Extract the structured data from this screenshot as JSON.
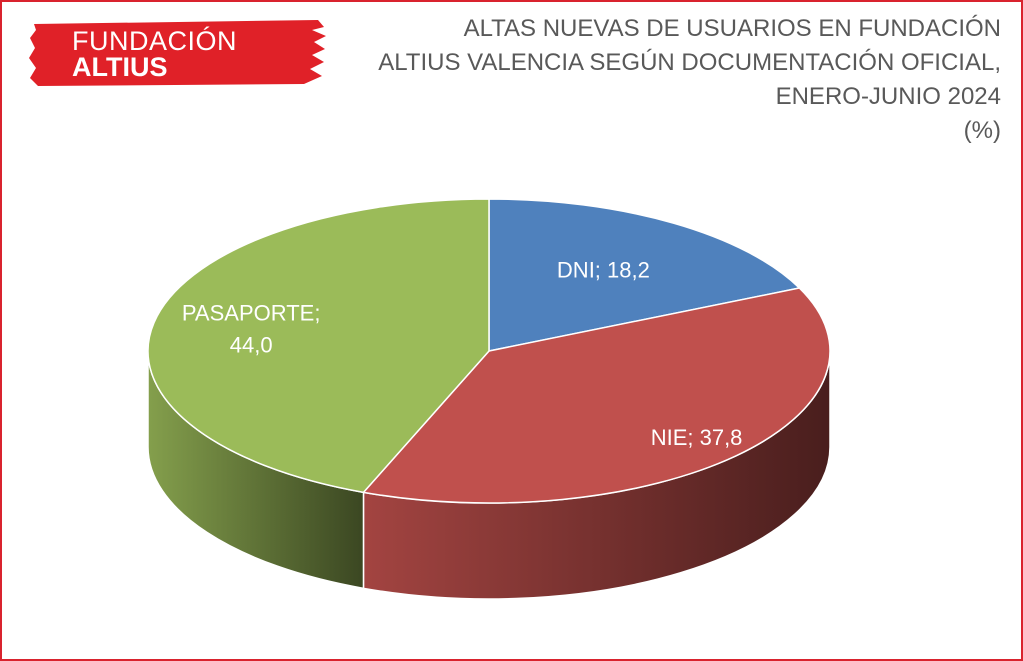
{
  "logo": {
    "line1": "FUNDACIÓN",
    "line2": "ALTIUS",
    "color": "#e02128"
  },
  "chart_data": {
    "type": "pie",
    "title_lines": [
      "ALTAS NUEVAS DE USUARIOS EN FUNDACIÓN",
      "ALTIUS VALENCIA SEGÚN DOCUMENTACIÓN OFICIAL,",
      "ENERO-JUNIO 2024",
      "(%)"
    ],
    "slices": [
      {
        "label": "DNI",
        "value": 18.2,
        "display": "DNI; 18,2",
        "color": "#4f81bd"
      },
      {
        "label": "NIE",
        "value": 37.8,
        "display": "NIE; 37,8",
        "color": "#c0504d"
      },
      {
        "label": "PASAPORTE",
        "value": 44.0,
        "display_lines": [
          "PASAPORTE;",
          "44,0"
        ],
        "color": "#9bbb59"
      }
    ],
    "legend": "none"
  }
}
